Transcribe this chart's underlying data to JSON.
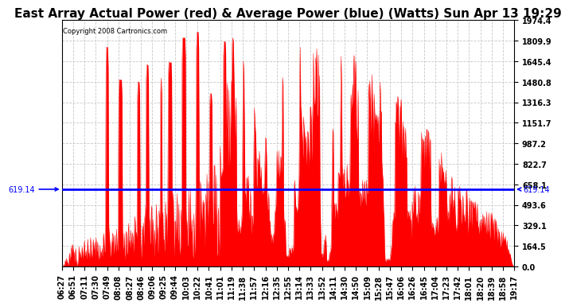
{
  "title": "East Array Actual Power (red) & Average Power (blue) (Watts) Sun Apr 13 19:29",
  "copyright": "Copyright 2008 Cartronics.com",
  "avg_power": 619.14,
  "y_max": 1974.4,
  "y_ticks": [
    0.0,
    164.5,
    329.1,
    493.6,
    658.1,
    822.7,
    987.2,
    1151.7,
    1316.3,
    1480.8,
    1645.4,
    1809.9,
    1974.4
  ],
  "x_labels": [
    "06:27",
    "06:51",
    "07:11",
    "07:30",
    "07:49",
    "08:08",
    "08:27",
    "08:46",
    "09:06",
    "09:25",
    "09:44",
    "10:03",
    "10:22",
    "10:41",
    "11:01",
    "11:19",
    "11:38",
    "11:57",
    "12:16",
    "12:35",
    "12:55",
    "13:14",
    "13:33",
    "13:52",
    "14:11",
    "14:30",
    "14:50",
    "15:09",
    "15:28",
    "15:47",
    "16:06",
    "16:26",
    "16:45",
    "17:04",
    "17:23",
    "17:42",
    "18:01",
    "18:20",
    "18:39",
    "18:58",
    "19:17"
  ],
  "background_color": "#ffffff",
  "bar_color": "#ff0000",
  "avg_line_color": "#0000ff",
  "grid_color": "#c8c8c8",
  "title_fontsize": 11,
  "tick_fontsize": 7,
  "n_points": 820,
  "n_labels": 41
}
